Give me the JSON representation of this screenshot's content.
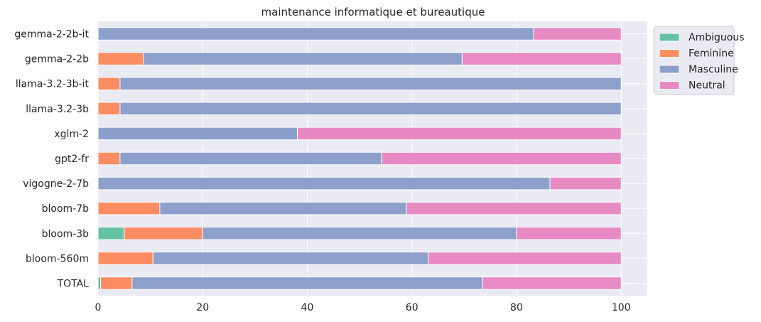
{
  "chart_data": {
    "type": "bar",
    "orientation": "horizontal",
    "stacked": true,
    "title": "maintenance informatique et bureautique",
    "xlabel": "",
    "ylabel": "",
    "xlim": [
      0,
      105
    ],
    "xticks": [
      0,
      20,
      40,
      60,
      80,
      100
    ],
    "grid": true,
    "legend_position": "outside-top-right",
    "categories": [
      "gemma-2-2b-it",
      "gemma-2-2b",
      "llama-3.2-3b-it",
      "llama-3.2-3b",
      "xglm-2",
      "gpt2-fr",
      "vigogne-2-7b",
      "bloom-7b",
      "bloom-3b",
      "bloom-560m",
      "TOTAL"
    ],
    "series": [
      {
        "name": "Ambiguous",
        "color": "#66c2a5",
        "values": [
          0,
          0,
          0,
          0,
          0,
          0,
          0,
          0,
          5,
          0,
          0.5
        ]
      },
      {
        "name": "Feminine",
        "color": "#fc8d62",
        "values": [
          0,
          8.7,
          4.2,
          4.2,
          0,
          4.2,
          0,
          11.8,
          15,
          10.5,
          6
        ]
      },
      {
        "name": "Masculine",
        "color": "#8da0cb",
        "values": [
          83.3,
          60.9,
          95.8,
          95.8,
          38.1,
          50,
          86.4,
          47.1,
          60,
          52.6,
          67
        ]
      },
      {
        "name": "Neutral",
        "color": "#e78ac3",
        "values": [
          16.7,
          30.4,
          0,
          0,
          61.9,
          45.8,
          13.6,
          41.1,
          20,
          36.9,
          26.5
        ]
      }
    ]
  }
}
